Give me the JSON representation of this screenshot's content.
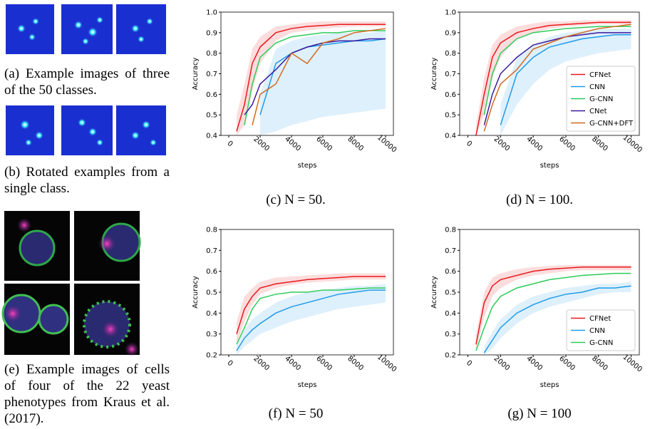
{
  "panels": {
    "a": "(a) Example images of three of the 50 classes.",
    "b": "(b) Rotated examples from a single class.",
    "e": "(e) Example images of cells of four of the 22 yeast phenotypes from Kraus et al. (2017)."
  },
  "chart_data": [
    {
      "type": "line",
      "caption": "(c) N = 50.",
      "xlabel": "steps",
      "ylabel": "Accuracy",
      "x": [
        500,
        1000,
        1500,
        2000,
        3000,
        4000,
        5000,
        6000,
        7000,
        8000,
        9000,
        10000
      ],
      "xlim": [
        -500,
        10500
      ],
      "xticks": [
        0,
        2000,
        4000,
        6000,
        8000,
        10000
      ],
      "ylim": [
        0.4,
        1.0
      ],
      "yticks": [
        0.4,
        0.5,
        0.6,
        0.7,
        0.8,
        0.9,
        {
          "value": 1.0,
          "label": "1.0"
        }
      ],
      "series": [
        {
          "name": "CFNet",
          "color": "#e8191d",
          "values": [
            0.42,
            0.55,
            0.75,
            0.83,
            0.9,
            0.92,
            0.93,
            0.935,
            0.94,
            0.94,
            0.94,
            0.94
          ],
          "lower": [
            0.4,
            0.45,
            0.62,
            0.75,
            0.86,
            0.9,
            0.91,
            0.92,
            0.925,
            0.93,
            0.93,
            0.93
          ],
          "upper": [
            0.5,
            0.65,
            0.82,
            0.88,
            0.93,
            0.94,
            0.95,
            0.955,
            0.955,
            0.955,
            0.955,
            0.955
          ]
        },
        {
          "name": "CNN",
          "color": "#1f9be8",
          "values": [
            null,
            null,
            null,
            0.5,
            0.75,
            0.8,
            0.83,
            0.84,
            0.85,
            0.86,
            0.86,
            0.87
          ],
          "lower": [
            null,
            null,
            null,
            0.4,
            0.42,
            0.45,
            0.47,
            0.49,
            0.5,
            0.51,
            0.52,
            0.53
          ],
          "upper": [
            null,
            null,
            null,
            0.6,
            0.82,
            0.86,
            0.88,
            0.89,
            0.9,
            0.9,
            0.9,
            0.91
          ]
        },
        {
          "name": "G-CNN",
          "color": "#2ecc5a",
          "values": [
            null,
            0.45,
            0.65,
            0.78,
            0.85,
            0.88,
            0.89,
            0.9,
            0.9,
            0.91,
            0.91,
            0.91
          ]
        },
        {
          "name": "CNet",
          "color": "#3b1a9e",
          "values": [
            null,
            0.5,
            0.55,
            0.65,
            0.72,
            0.8,
            0.83,
            0.85,
            0.86,
            0.86,
            0.87,
            0.87
          ]
        },
        {
          "name": "G-CNN+DFT",
          "color": "#d2691e",
          "values": [
            null,
            null,
            0.45,
            0.6,
            0.65,
            0.8,
            0.75,
            0.85,
            0.87,
            0.9,
            0.91,
            0.92
          ]
        }
      ]
    },
    {
      "type": "line",
      "caption": "(d) N = 100.",
      "xlabel": "steps",
      "ylabel": "Accuracy",
      "legend": "lower right",
      "x": [
        500,
        1000,
        1500,
        2000,
        3000,
        4000,
        5000,
        6000,
        7000,
        8000,
        9000,
        10000
      ],
      "xlim": [
        -500,
        10500
      ],
      "xticks": [
        0,
        2000,
        4000,
        6000,
        8000,
        10000
      ],
      "ylim": [
        0.4,
        1.0
      ],
      "yticks": [
        0.4,
        0.5,
        0.6,
        0.7,
        0.8,
        0.9,
        {
          "value": 1.0,
          "label": "1.0"
        }
      ],
      "series": [
        {
          "name": "CFNet",
          "color": "#e8191d",
          "values": [
            0.4,
            0.6,
            0.78,
            0.85,
            0.9,
            0.92,
            0.935,
            0.94,
            0.945,
            0.95,
            0.95,
            0.95
          ],
          "lower": [
            0.4,
            0.5,
            0.68,
            0.78,
            0.87,
            0.9,
            0.92,
            0.93,
            0.935,
            0.94,
            0.94,
            0.94
          ],
          "upper": [
            0.45,
            0.68,
            0.84,
            0.89,
            0.93,
            0.945,
            0.955,
            0.955,
            0.96,
            0.96,
            0.96,
            0.96
          ]
        },
        {
          "name": "CNN",
          "color": "#1f9be8",
          "values": [
            null,
            null,
            null,
            0.45,
            0.7,
            0.78,
            0.83,
            0.85,
            0.87,
            0.88,
            0.89,
            0.89
          ],
          "lower": [
            null,
            null,
            null,
            0.4,
            0.55,
            0.65,
            0.72,
            0.76,
            0.78,
            0.8,
            0.81,
            0.82
          ],
          "upper": [
            null,
            null,
            null,
            0.55,
            0.78,
            0.84,
            0.88,
            0.9,
            0.91,
            0.92,
            0.92,
            0.92
          ]
        },
        {
          "name": "G-CNN",
          "color": "#2ecc5a",
          "values": [
            null,
            0.5,
            0.7,
            0.8,
            0.87,
            0.9,
            0.91,
            0.92,
            0.925,
            0.93,
            0.93,
            0.93
          ]
        },
        {
          "name": "CNet",
          "color": "#3b1a9e",
          "values": [
            null,
            0.45,
            0.6,
            0.7,
            0.78,
            0.84,
            0.86,
            0.88,
            0.89,
            0.9,
            0.9,
            0.9
          ]
        },
        {
          "name": "G-CNN+DFT",
          "color": "#d2691e",
          "values": [
            null,
            0.42,
            0.55,
            0.65,
            0.72,
            0.82,
            0.85,
            0.88,
            0.9,
            0.92,
            0.93,
            0.94
          ]
        }
      ]
    },
    {
      "type": "line",
      "caption": "(f) N = 50",
      "xlabel": "steps",
      "ylabel": "Accuracy",
      "x": [
        500,
        1000,
        1500,
        2000,
        3000,
        4000,
        5000,
        6000,
        7000,
        8000,
        9000,
        10000
      ],
      "xlim": [
        -500,
        10500
      ],
      "xticks": [
        0,
        2000,
        4000,
        6000,
        8000,
        10000
      ],
      "ylim": [
        0.2,
        0.8
      ],
      "yticks": [
        0.2,
        0.3,
        0.4,
        0.5,
        0.6,
        0.7,
        0.8
      ],
      "series": [
        {
          "name": "CFNet",
          "color": "#e8191d",
          "values": [
            0.3,
            0.42,
            0.48,
            0.52,
            0.54,
            0.55,
            0.56,
            0.565,
            0.57,
            0.575,
            0.575,
            0.575
          ],
          "lower": [
            0.25,
            0.36,
            0.44,
            0.49,
            0.52,
            0.535,
            0.545,
            0.55,
            0.555,
            0.56,
            0.56,
            0.56
          ],
          "upper": [
            0.36,
            0.48,
            0.52,
            0.55,
            0.57,
            0.575,
            0.58,
            0.585,
            0.59,
            0.59,
            0.59,
            0.59
          ]
        },
        {
          "name": "CNN",
          "color": "#1f9be8",
          "values": [
            0.22,
            0.28,
            0.32,
            0.35,
            0.4,
            0.43,
            0.45,
            0.47,
            0.49,
            0.5,
            0.51,
            0.51
          ],
          "lower": [
            0.2,
            0.24,
            0.27,
            0.3,
            0.33,
            0.36,
            0.38,
            0.4,
            0.42,
            0.43,
            0.44,
            0.45
          ],
          "upper": [
            0.24,
            0.32,
            0.37,
            0.4,
            0.45,
            0.48,
            0.5,
            0.51,
            0.52,
            0.53,
            0.53,
            0.54
          ]
        },
        {
          "name": "G-CNN",
          "color": "#2ecc5a",
          "values": [
            0.25,
            0.33,
            0.42,
            0.47,
            0.49,
            0.5,
            0.5,
            0.51,
            0.51,
            0.515,
            0.52,
            0.52
          ]
        }
      ]
    },
    {
      "type": "line",
      "caption": "(g) N = 100",
      "xlabel": "steps",
      "ylabel": "Accuracy",
      "legend": "lower right",
      "x": [
        500,
        1000,
        1500,
        2000,
        3000,
        4000,
        5000,
        6000,
        7000,
        8000,
        9000,
        10000
      ],
      "xlim": [
        -500,
        10500
      ],
      "xticks": [
        0,
        2000,
        4000,
        6000,
        8000,
        10000
      ],
      "ylim": [
        0.2,
        0.8
      ],
      "yticks": [
        0.2,
        0.3,
        0.4,
        0.5,
        0.6,
        0.7,
        0.8
      ],
      "series": [
        {
          "name": "CFNet",
          "color": "#e8191d",
          "values": [
            0.25,
            0.45,
            0.53,
            0.56,
            0.58,
            0.6,
            0.61,
            0.615,
            0.62,
            0.62,
            0.62,
            0.62
          ],
          "lower": [
            0.22,
            0.38,
            0.48,
            0.52,
            0.56,
            0.58,
            0.59,
            0.6,
            0.605,
            0.605,
            0.605,
            0.605
          ],
          "upper": [
            0.3,
            0.5,
            0.57,
            0.59,
            0.61,
            0.62,
            0.625,
            0.63,
            0.63,
            0.63,
            0.63,
            0.63
          ]
        },
        {
          "name": "CNN",
          "color": "#1f9be8",
          "values": [
            null,
            0.21,
            0.27,
            0.33,
            0.4,
            0.44,
            0.47,
            0.49,
            0.5,
            0.52,
            0.52,
            0.53
          ],
          "lower": [
            null,
            0.2,
            0.23,
            0.28,
            0.35,
            0.4,
            0.43,
            0.45,
            0.47,
            0.49,
            0.5,
            0.5
          ],
          "upper": [
            null,
            0.24,
            0.31,
            0.37,
            0.44,
            0.48,
            0.5,
            0.52,
            0.53,
            0.54,
            0.54,
            0.55
          ]
        },
        {
          "name": "G-CNN",
          "color": "#2ecc5a",
          "values": [
            0.22,
            0.33,
            0.43,
            0.48,
            0.52,
            0.54,
            0.56,
            0.57,
            0.58,
            0.585,
            0.59,
            0.59
          ]
        }
      ]
    }
  ]
}
